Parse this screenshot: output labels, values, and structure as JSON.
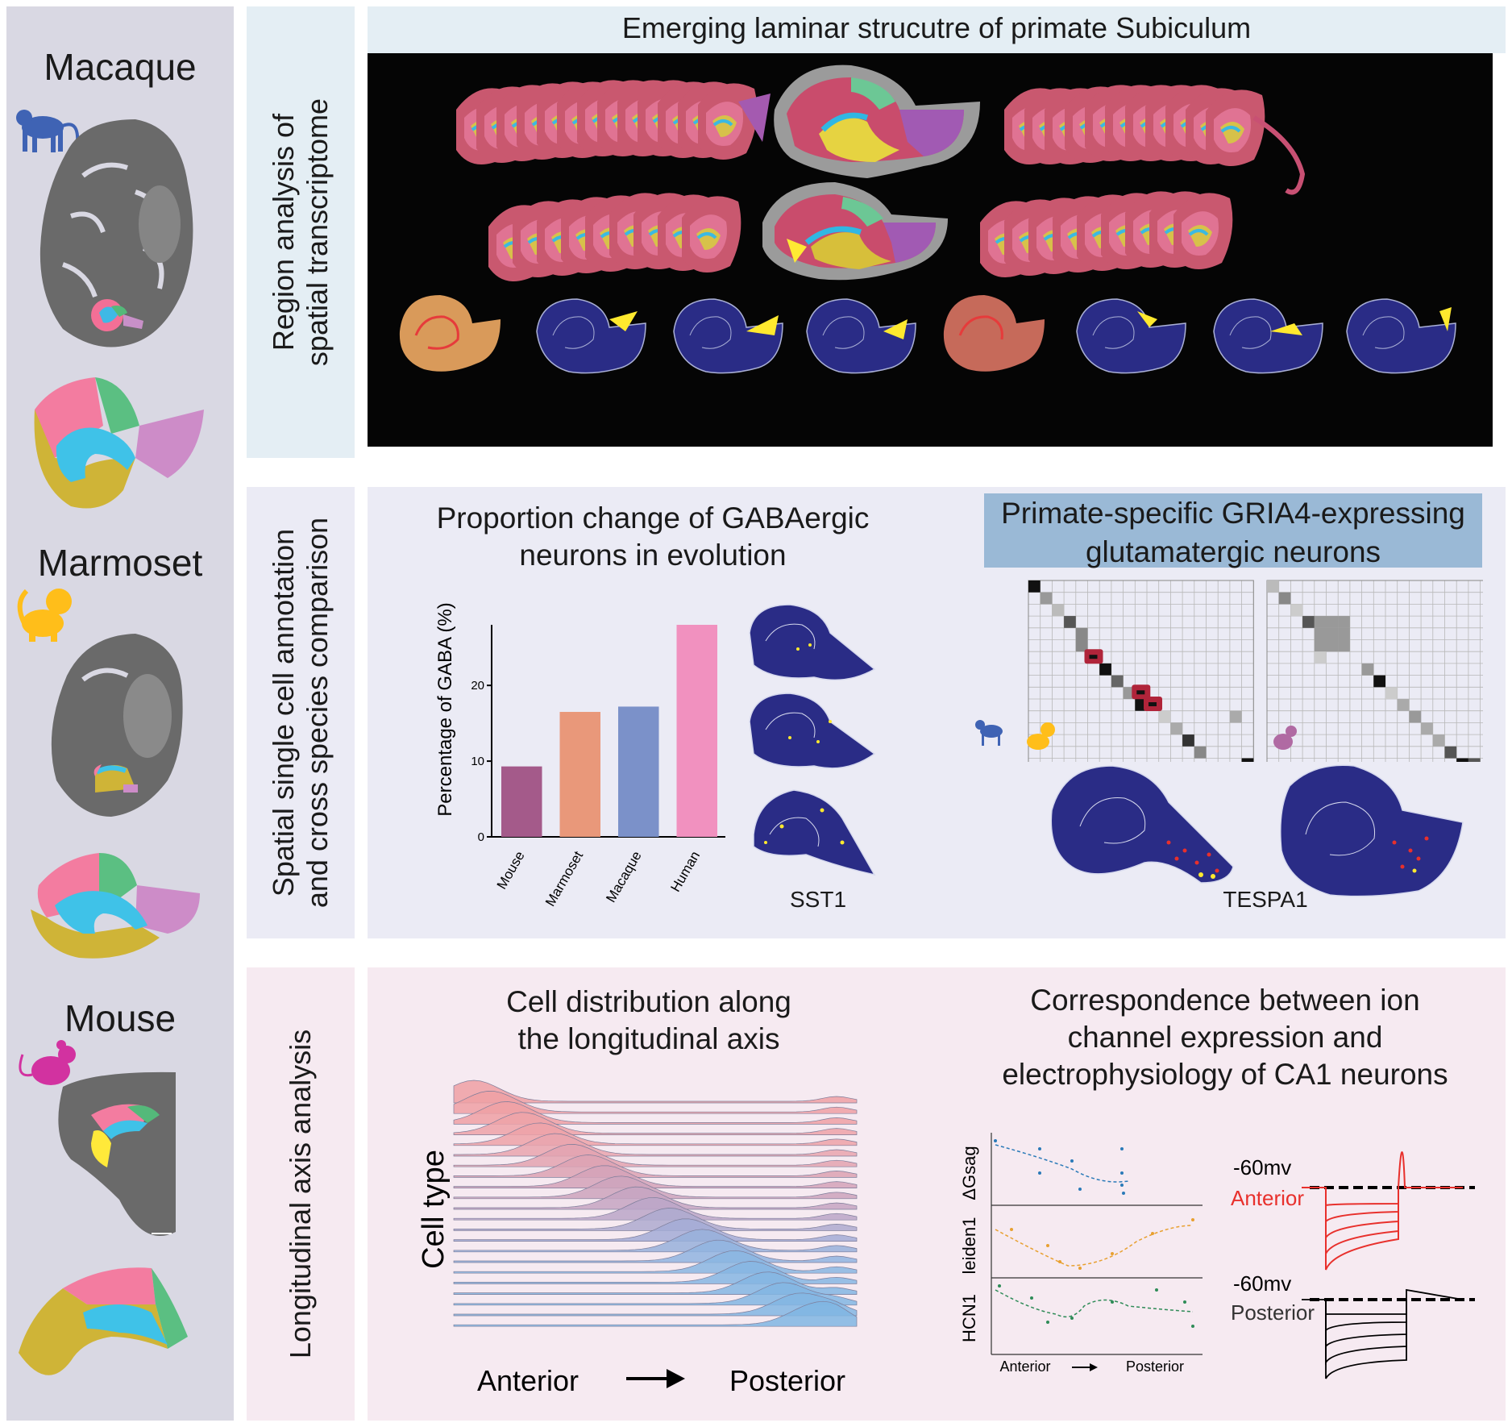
{
  "sidebar": {
    "species": [
      "Macaque",
      "Marmoset",
      "Mouse"
    ]
  },
  "row1": {
    "side_label": "Region analysis of\nspatial transcriptome",
    "title": "Emerging laminar strucutre of primate Subiculum"
  },
  "row2": {
    "side_label": "Spatial single cell annotation\nand cross species comparison",
    "bar_title": "Proportion change of GABAergic\nneurons in evolution",
    "gria4_title_line1": "Primate-specific GRIA4-expressing",
    "gria4_title_line2": "glutamatergic neurons",
    "sst_label": "SST1",
    "tespa_label": "TESPA1"
  },
  "row3": {
    "side_label": "Longitudinal axis analysis",
    "ridge_title": "Cell distribution along\nthe longitudinal axis",
    "ridge_ylabel": "Cell type",
    "ridge_anterior": "Anterior",
    "ridge_posterior": "Posterior",
    "ion_title": "Correspondence between ion\nchannel expression and\nelectrophysiology of CA1 neurons",
    "scatter_labels": [
      "ΔGsag",
      "leiden1",
      "HCN1"
    ],
    "scatter_anterior": "Anterior",
    "scatter_posterior": "Posterior",
    "trace_top_mv": "-60mv",
    "trace_top_label": "Anterior",
    "trace_bottom_mv": "-60mv",
    "trace_bottom_label": "Posterior"
  },
  "colors": {
    "sidebar_bg": "#d9d8e3",
    "row1_bg": "#e4eef4",
    "row2_bg": "#ebebf5",
    "row3_bg": "#f6eaf1",
    "gria4_highlight": "#9ab9d6",
    "anterior_trace": "#e8302c"
  },
  "chart_data": {
    "type": "bar",
    "categories": [
      "Mouse",
      "Marmoset",
      "Macaque",
      "Human"
    ],
    "values": [
      9.3,
      16.5,
      17.2,
      28
    ],
    "colors": [
      "#a45a8a",
      "#e9987a",
      "#7b91c9",
      "#f191bf"
    ],
    "ylabel": "Percentage of GABA (%)",
    "yticks": [
      0,
      10,
      20
    ],
    "ylim": [
      0,
      28
    ]
  }
}
